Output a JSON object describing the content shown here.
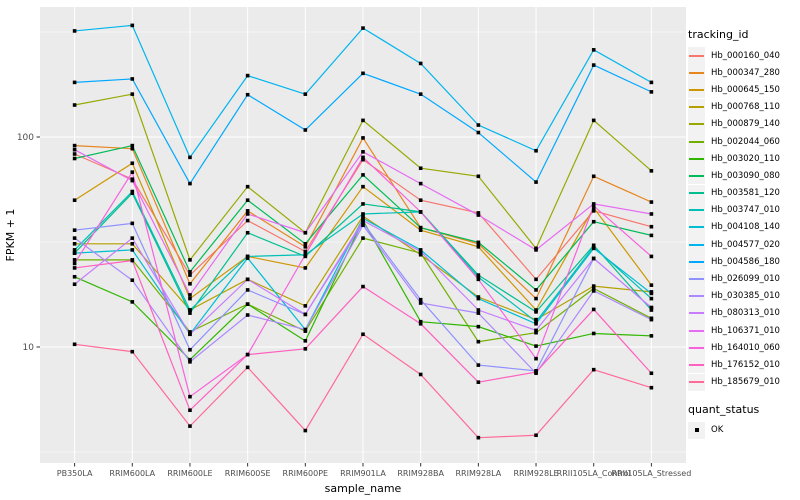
{
  "ui": {
    "background": "#FFFFFF",
    "panel_bg": "#EBEBEB",
    "grid_color": "#FFFFFF",
    "tick_color": "#333333",
    "tick_text_color": "#4D4D4D",
    "axis_title_color": "#000000",
    "legend_key_bg": "#F2F2F2",
    "marker_color": "#000000"
  },
  "chart_data": {
    "type": "line",
    "title": "",
    "xlabel": "sample_name",
    "ylabel": "FPKM + 1",
    "y_scale": "log10",
    "y_ticks": [
      10,
      100
    ],
    "y_tick_labels": [
      "10",
      "100"
    ],
    "ylim_log": [
      2.83,
      411
    ],
    "grid": true,
    "marker_shape": "black-square",
    "legend": {
      "series_title": "tracking_id",
      "shape_title": "quant_status",
      "shape_label": "OK",
      "position": "right"
    },
    "categories": [
      "PB350LA",
      "RRIM600LA",
      "RRIM600LE",
      "RRIM600SE",
      "RRIM600PE",
      "RRIM901LA",
      "RRIM928BA",
      "RRIM928LA",
      "RRIM928LE",
      "RRII105LA_Control",
      "RRII105LA_Stressed"
    ],
    "series": [
      {
        "name": "Hb_000160_040",
        "color": "#F8766D",
        "values": [
          83,
          63,
          22,
          40,
          28.5,
          78,
          50,
          43.5,
          21,
          44.5,
          37.4
        ]
      },
      {
        "name": "Hb_000347_280",
        "color": "#E7851E",
        "values": [
          91,
          88,
          20,
          44.5,
          30,
          99,
          37,
          31,
          17,
          65,
          49
        ]
      },
      {
        "name": "Hb_000645_150",
        "color": "#CE9700",
        "values": [
          50,
          75,
          17,
          27,
          23.8,
          58,
          36,
          30,
          15,
          46,
          19.7
        ]
      },
      {
        "name": "Hb_000768_110",
        "color": "#B5A000",
        "values": [
          31,
          31,
          15,
          21,
          15.7,
          42,
          27.5,
          17.3,
          13.5,
          19.5,
          18.3
        ]
      },
      {
        "name": "Hb_000879_140",
        "color": "#97A900",
        "values": [
          142,
          160,
          26,
          58,
          35,
          120,
          71,
          65,
          29.5,
          120,
          69
        ]
      },
      {
        "name": "Hb_002044_060",
        "color": "#71B000",
        "values": [
          26,
          26,
          11.8,
          16,
          11.9,
          33,
          28,
          10.6,
          11.7,
          19,
          13.7
        ]
      },
      {
        "name": "Hb_003020_110",
        "color": "#31B600",
        "values": [
          21.6,
          16.4,
          8.7,
          16,
          10.7,
          40,
          13.2,
          12.5,
          10.1,
          11.6,
          11.3
        ]
      },
      {
        "name": "Hb_003090_080",
        "color": "#00BB57",
        "values": [
          79,
          91,
          22.8,
          50,
          31,
          66,
          37,
          31.5,
          18.7,
          39.5,
          34
        ]
      },
      {
        "name": "Hb_003581_120",
        "color": "#00BF8E",
        "values": [
          28,
          54,
          14.5,
          35,
          27,
          48,
          44,
          22,
          14.7,
          30.5,
          15
        ]
      },
      {
        "name": "Hb_003747_010",
        "color": "#00C0B5",
        "values": [
          29,
          55,
          15,
          27,
          27.5,
          43,
          44,
          21.5,
          13.2,
          30,
          17
        ]
      },
      {
        "name": "Hb_004108_140",
        "color": "#00BDD4",
        "values": [
          28,
          29,
          11.5,
          26.5,
          12.1,
          41,
          29,
          17,
          12.9,
          29.5,
          18
        ]
      },
      {
        "name": "Hb_004577_020",
        "color": "#00B5EE",
        "values": [
          320,
          340,
          80,
          196,
          160,
          330,
          224,
          114,
          86,
          260,
          182
        ]
      },
      {
        "name": "Hb_004586_180",
        "color": "#00A8FF",
        "values": [
          182,
          189,
          60,
          159,
          108,
          201,
          160,
          105,
          61,
          220,
          164
        ]
      },
      {
        "name": "Hb_026099_010",
        "color": "#8F91FF",
        "values": [
          36,
          38.8,
          9.7,
          18.7,
          14.3,
          39,
          16.8,
          8.2,
          7.7,
          26.4,
          15.4
        ]
      },
      {
        "name": "Hb_030385_010",
        "color": "#AB88FF",
        "values": [
          33,
          20.8,
          8.5,
          14.2,
          12.1,
          38,
          16.2,
          14.5,
          7.5,
          18.5,
          13.5
        ]
      },
      {
        "name": "Hb_080313_010",
        "color": "#C77CFF",
        "values": [
          19.9,
          33,
          11.5,
          21,
          14.3,
          40,
          28.5,
          15,
          12,
          26.4,
          15.4
        ]
      },
      {
        "name": "Hb_106371_010",
        "color": "#E76BF3",
        "values": [
          87,
          62,
          17.7,
          43,
          35,
          85,
          60,
          42.5,
          29,
          48,
          43
        ]
      },
      {
        "name": "Hb_164010_060",
        "color": "#F862DD",
        "values": [
          25,
          68,
          5.8,
          9.2,
          27.5,
          80,
          44,
          21,
          8.8,
          47,
          27
        ]
      },
      {
        "name": "Hb_176152_010",
        "color": "#FF61C0",
        "values": [
          23.8,
          25.8,
          5,
          9.2,
          9.8,
          19.4,
          12.9,
          6.8,
          7.6,
          15.1,
          7.5
        ]
      },
      {
        "name": "Hb_185679_010",
        "color": "#FF6A98",
        "values": [
          10.3,
          9.5,
          4.2,
          8,
          4,
          11.5,
          7.4,
          3.7,
          3.8,
          7.8,
          6.4
        ]
      }
    ]
  }
}
